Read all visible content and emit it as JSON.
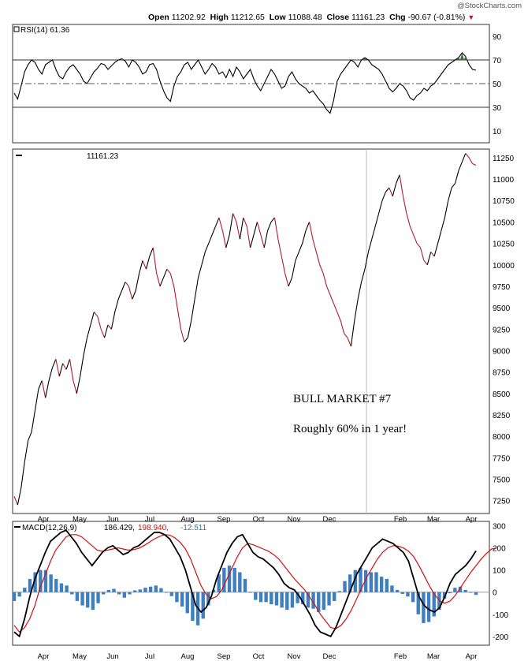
{
  "watermark": "@StockCharts.com",
  "header": {
    "open_label": "Open",
    "open": "11202.92",
    "high_label": "High",
    "high": "11212.65",
    "low_label": "Low",
    "low": "11088.48",
    "close_label": "Close",
    "close": "11161.23",
    "chg_label": "Chg",
    "chg": "-90.67 (-0.81%)"
  },
  "annotation": {
    "line1": "BULL MARKET #7",
    "line2": "Roughly 60% in 1 year!"
  },
  "colors": {
    "down": "#b11a2b",
    "up": "#000000",
    "hist": "#3f7fbf",
    "rsi_fill": "#3d6e3d",
    "signal": "#d01010",
    "macd_value3": "#2a7d9b"
  },
  "chart_data": [
    {
      "type": "line",
      "panel": "rsi",
      "legend": "RSI(14) 61.36",
      "yticks": [
        10,
        30,
        50,
        70,
        90
      ],
      "ylim": [
        0,
        100
      ],
      "reference_lines": [
        30,
        50,
        70
      ],
      "months": [
        "Apr",
        "May",
        "Jun",
        "Jul",
        "Aug",
        "Sep",
        "Oct",
        "Nov",
        "Dec",
        "Feb",
        "Mar",
        "Apr"
      ],
      "values": [
        42,
        37,
        48,
        60,
        66,
        70,
        68,
        62,
        58,
        66,
        68,
        70,
        62,
        56,
        54,
        60,
        64,
        66,
        62,
        58,
        52,
        50,
        55,
        60,
        63,
        67,
        66,
        62,
        65,
        68,
        70,
        71,
        69,
        64,
        70,
        68,
        64,
        58,
        60,
        66,
        67,
        62,
        52,
        44,
        38,
        35,
        48,
        56,
        60,
        66,
        68,
        62,
        66,
        70,
        64,
        58,
        62,
        67,
        64,
        58,
        60,
        55,
        62,
        56,
        64,
        60,
        54,
        58,
        62,
        54,
        48,
        44,
        50,
        56,
        62,
        58,
        52,
        46,
        48,
        56,
        60,
        54,
        50,
        48,
        46,
        42,
        44,
        40,
        36,
        33,
        28,
        25,
        36,
        52,
        58,
        62,
        66,
        70,
        68,
        64,
        70,
        72,
        70,
        66,
        64,
        62,
        58,
        52,
        46,
        43,
        46,
        50,
        48,
        44,
        38,
        36,
        40,
        42,
        46,
        44,
        48,
        50,
        54,
        58,
        62,
        66,
        68,
        70,
        72,
        76,
        73,
        66,
        62,
        61.36
      ]
    },
    {
      "type": "line",
      "panel": "price",
      "legend": "11161.23",
      "yticks": [
        7250,
        7500,
        7750,
        8000,
        8250,
        8500,
        8750,
        9000,
        9250,
        9500,
        9750,
        10000,
        10250,
        10500,
        10750,
        11000,
        11250
      ],
      "ylim": [
        7100,
        11350
      ],
      "months": [
        "Apr",
        "May",
        "Jun",
        "Jul",
        "Aug",
        "Sep",
        "Oct",
        "Nov",
        "Dec",
        "Feb",
        "Mar",
        "Apr"
      ],
      "values": [
        7300,
        7200,
        7400,
        7700,
        7950,
        8050,
        8300,
        8550,
        8650,
        8450,
        8650,
        8800,
        8900,
        8700,
        8850,
        8780,
        8900,
        8650,
        8500,
        8700,
        8950,
        9150,
        9300,
        9450,
        9400,
        9250,
        9150,
        9300,
        9250,
        9450,
        9600,
        9700,
        9800,
        9750,
        9600,
        9700,
        9900,
        10050,
        9950,
        10100,
        10200,
        9900,
        9750,
        9850,
        9950,
        9900,
        9750,
        9500,
        9250,
        9100,
        9150,
        9350,
        9600,
        9850,
        10000,
        10150,
        10250,
        10350,
        10450,
        10550,
        10400,
        10200,
        10350,
        10600,
        10500,
        10300,
        10550,
        10450,
        10200,
        10350,
        10500,
        10350,
        10200,
        10400,
        10500,
        10550,
        10300,
        10100,
        9900,
        9750,
        9850,
        10050,
        10150,
        10250,
        10400,
        10500,
        10300,
        10150,
        10000,
        9900,
        9750,
        9650,
        9550,
        9450,
        9350,
        9200,
        9150,
        9050,
        9350,
        9600,
        9800,
        9950,
        10150,
        10300,
        10450,
        10600,
        10750,
        10850,
        10900,
        10800,
        10950,
        11050,
        10800,
        10600,
        10450,
        10350,
        10250,
        10200,
        10050,
        10000,
        10150,
        10100,
        10250,
        10400,
        10550,
        10750,
        10900,
        10950,
        11100,
        11200,
        11300,
        11250,
        11180,
        11161.23
      ]
    },
    {
      "type": "line",
      "panel": "macd",
      "legend": {
        "name": "MACD(12,26,9)",
        "macd": "186.429",
        "signal": "198.940",
        "hist": "-12.511"
      },
      "yticks": [
        -200,
        -100,
        0,
        100,
        200,
        300
      ],
      "ylim": [
        -240,
        320
      ],
      "months": [
        "Apr",
        "May",
        "Jun",
        "Jul",
        "Aug",
        "Sep",
        "Oct",
        "Nov",
        "Dec",
        "Feb",
        "Mar",
        "Apr"
      ],
      "macd": [
        -180,
        -200,
        -120,
        -20,
        60,
        120,
        180,
        230,
        250,
        270,
        280,
        250,
        220,
        180,
        150,
        120,
        150,
        180,
        200,
        210,
        190,
        170,
        180,
        200,
        210,
        230,
        250,
        270,
        270,
        260,
        240,
        200,
        160,
        100,
        20,
        -60,
        -90,
        -70,
        -20,
        60,
        120,
        180,
        220,
        250,
        260,
        220,
        180,
        160,
        150,
        130,
        110,
        80,
        40,
        20,
        10,
        -20,
        -60,
        -100,
        -150,
        -180,
        -190,
        -200,
        -160,
        -100,
        -40,
        20,
        80,
        120,
        160,
        200,
        220,
        240,
        230,
        220,
        200,
        180,
        140,
        60,
        -20,
        -60,
        -80,
        -90,
        -70,
        -20,
        40,
        80,
        100,
        120,
        150,
        186.429
      ],
      "signal": [
        -150,
        -180,
        -160,
        -120,
        -60,
        20,
        80,
        140,
        190,
        220,
        250,
        260,
        260,
        250,
        230,
        210,
        190,
        185,
        190,
        195,
        200,
        195,
        190,
        192,
        198,
        210,
        225,
        240,
        252,
        260,
        258,
        245,
        225,
        195,
        150,
        90,
        30,
        -10,
        -30,
        -20,
        10,
        60,
        110,
        160,
        200,
        220,
        215,
        205,
        195,
        185,
        170,
        150,
        120,
        90,
        60,
        35,
        10,
        -25,
        -60,
        -100,
        -130,
        -160,
        -165,
        -150,
        -120,
        -80,
        -30,
        20,
        70,
        110,
        150,
        180,
        200,
        210,
        208,
        200,
        185,
        160,
        120,
        75,
        30,
        -10,
        -40,
        -50,
        -40,
        -15,
        20,
        55,
        90,
        120,
        150,
        175,
        195,
        198.94
      ],
      "hist": [
        -40,
        -20,
        20,
        60,
        90,
        100,
        100,
        80,
        60,
        40,
        30,
        -10,
        -40,
        -60,
        -70,
        -80,
        -50,
        -10,
        10,
        15,
        -10,
        -25,
        -10,
        8,
        12,
        20,
        25,
        30,
        18,
        0,
        -18,
        -45,
        -65,
        -95,
        -130,
        -150,
        -120,
        -60,
        10,
        80,
        110,
        120,
        110,
        90,
        60,
        0,
        -35,
        -45,
        -45,
        -55,
        -60,
        -70,
        -80,
        -70,
        -50,
        -55,
        -70,
        -75,
        -90,
        -80,
        -60,
        -40,
        5,
        50,
        80,
        100,
        110,
        100,
        90,
        90,
        70,
        60,
        30,
        10,
        -8,
        -20,
        -45,
        -100,
        -140,
        -135,
        -110,
        -80,
        -30,
        -5,
        20,
        25,
        10,
        0,
        -12.511
      ]
    }
  ]
}
